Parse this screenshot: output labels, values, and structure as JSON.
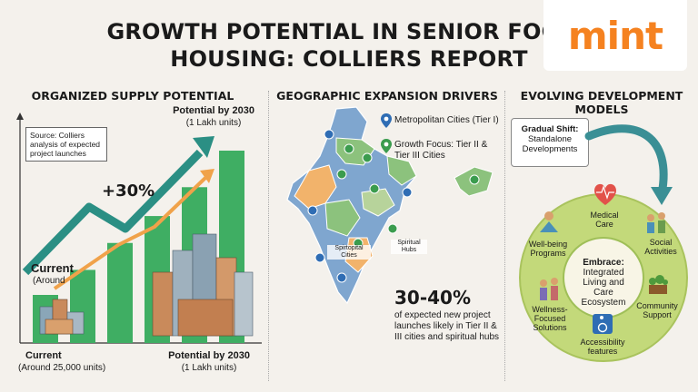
{
  "brand": "mint",
  "title": {
    "line1": "GROWTH POTENTIAL IN SENIOR FOCUS",
    "line2": "HOUSING: COLLIERS REPORT"
  },
  "left_panel": {
    "heading": "ORGANIZED SUPPLY POTENTIAL",
    "source_note": "Source: Colliers analysis of expected project launches",
    "growth_label": "+30%",
    "current_label": "Current",
    "current_sub": "(Around",
    "top_label": "Potential by 2030",
    "top_sub": "(1 Lakh units)",
    "bottom_left_label": "Current",
    "bottom_left_sub": "(Around 25,000 units)",
    "bottom_right_label": "Potential by 2030",
    "bottom_right_sub": "(1 Lakh units)"
  },
  "chart_data": {
    "type": "bar",
    "categories": [
      "Current",
      "",
      "",
      "",
      "",
      "Potential by 2030"
    ],
    "values": [
      0.25,
      0.38,
      0.52,
      0.66,
      0.81,
      1.0
    ],
    "ylim": [
      0,
      1
    ]
  },
  "middle_panel": {
    "heading": "GEOGRAPHIC EXPANSION DRIVERS",
    "legend_metro": "Metropolitan Cities (Tier I)",
    "legend_growth_1": "Growth Focus: Tier II &",
    "legend_growth_2": "Tier III Cities",
    "map_label_spiritual_cities_1": "Spirtopital",
    "map_label_spiritual_cities_2": "Cities",
    "map_label_hubs_1": "Spiritual",
    "map_label_hubs_2": "Hubs",
    "stat_value": "30-40%",
    "stat_text": "of expected new project launches likely in Tier II & III cities and spiritual hubs"
  },
  "right_panel": {
    "heading_1": "EVOLVING DEVELOPMENT",
    "heading_2": "MODELS",
    "shift_bold": "Gradual Shift:",
    "shift_text": "Standalone Developments",
    "embrace_bold": "Embrace:",
    "embrace_text": "Integrated Living and Care Ecosystem",
    "items": {
      "medical": "Medical Care",
      "social": "Social Activities",
      "community": "Community Support",
      "accessibility": "Accessibility features",
      "wellness": "Wellness-Focused Solutions",
      "wellbeing": "Well-being Programs"
    }
  },
  "colors": {
    "background": "#f4f1ec",
    "brand_orange": "#f58220",
    "bar_green": "#3fae63",
    "arrow_teal": "#2b8f84",
    "arrow_orange": "#f0a24a",
    "map_blue": "#7fa6cf",
    "map_green": "#8cc27d",
    "map_orange": "#f2b36b",
    "ring_green": "#c3d97a",
    "curve_teal": "#3a8f95"
  }
}
